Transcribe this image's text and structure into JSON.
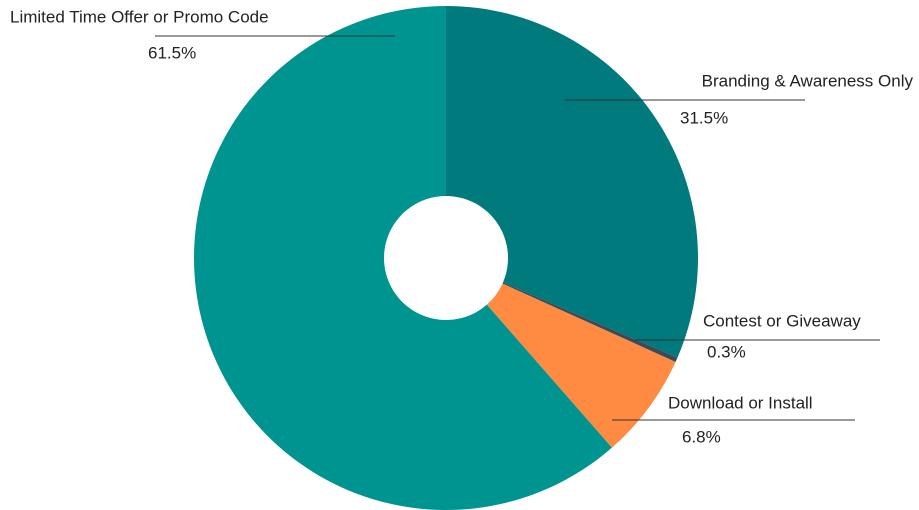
{
  "chart_data": {
    "type": "pie",
    "categories": [
      "Branding & Awareness Only",
      "Contest or Giveaway",
      "Download or Install",
      "Limited Time Offer or Promo Code"
    ],
    "values": [
      31.5,
      0.3,
      6.8,
      61.5
    ],
    "value_labels": [
      "31.5%",
      "0.3%",
      "6.8%",
      "61.5%"
    ],
    "colors": [
      "#007a7c",
      "#3b4a55",
      "#ff8a42",
      "#009490"
    ],
    "donut": true
  }
}
